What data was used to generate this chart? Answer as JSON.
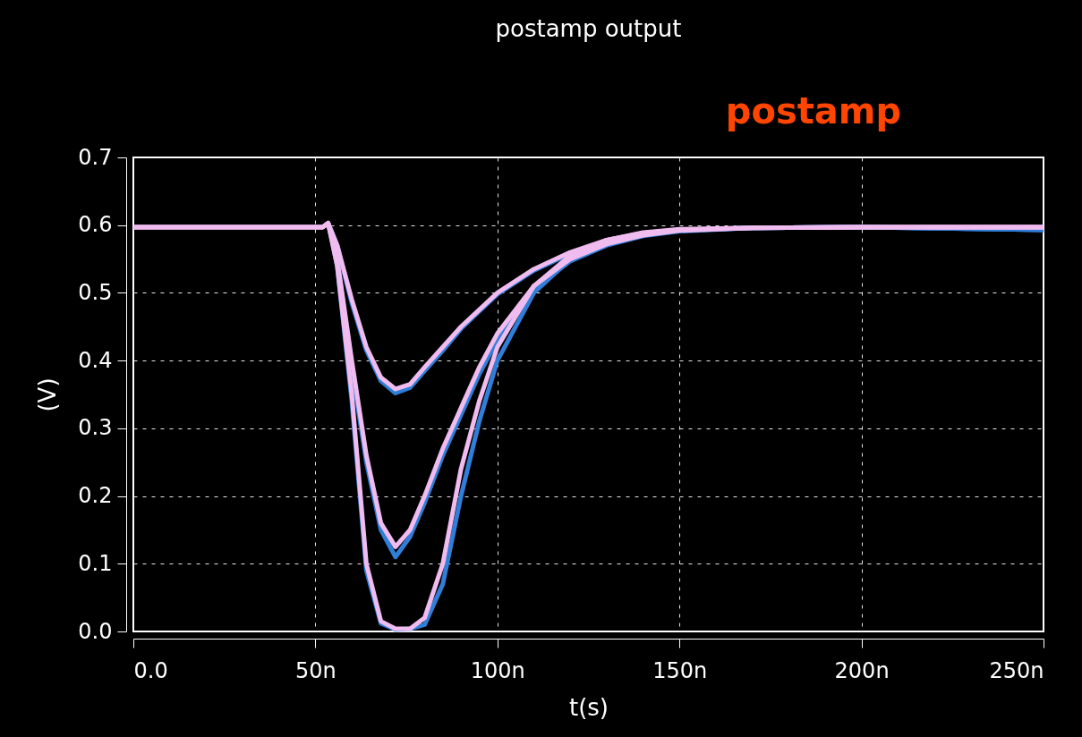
{
  "chart_data": {
    "type": "line",
    "title": "postamp output",
    "xlabel": "t(s)",
    "ylabel": "(V)",
    "annotations": [
      "postamp"
    ],
    "x": [
      0,
      52,
      53.5,
      56,
      60,
      64,
      68,
      72,
      76,
      80,
      85,
      90,
      95,
      100,
      110,
      120,
      130,
      140,
      150,
      170,
      200,
      250
    ],
    "series": [
      {
        "color": "#2f7fd8",
        "values": [
          null,
          null,
          0.603,
          0.57,
          0.485,
          0.415,
          0.37,
          0.352,
          0.36,
          0.385,
          0.415,
          0.447,
          0.473,
          0.498,
          0.533,
          0.558,
          0.576,
          0.587,
          0.592,
          0.596,
          0.597,
          0.593
        ]
      },
      {
        "color": "#2f7fd8",
        "values": [
          null,
          null,
          0.603,
          0.55,
          0.39,
          0.25,
          0.15,
          0.11,
          0.14,
          0.19,
          0.26,
          0.32,
          0.38,
          0.43,
          0.505,
          0.547,
          0.57,
          0.584,
          0.591,
          0.596,
          0.597,
          0.593
        ]
      },
      {
        "color": "#2f7fd8",
        "values": [
          null,
          null,
          0.603,
          0.54,
          0.34,
          0.09,
          0.012,
          0.003,
          0.004,
          0.01,
          0.07,
          0.2,
          0.31,
          0.4,
          0.5,
          0.55,
          0.575,
          0.587,
          0.593,
          0.596,
          0.597,
          0.593
        ]
      },
      {
        "color": "#f0bcf0",
        "values": [
          0.597,
          0.597,
          0.603,
          0.57,
          0.49,
          0.42,
          0.375,
          0.358,
          0.365,
          0.39,
          0.42,
          0.45,
          0.475,
          0.5,
          0.535,
          0.56,
          0.578,
          0.588,
          0.593,
          0.596,
          0.597,
          0.597
        ]
      },
      {
        "color": "#f0bcf0",
        "values": [
          0.597,
          0.597,
          0.603,
          0.55,
          0.4,
          0.26,
          0.16,
          0.125,
          0.15,
          0.2,
          0.27,
          0.33,
          0.39,
          0.44,
          0.51,
          0.55,
          0.572,
          0.585,
          0.592,
          0.596,
          0.597,
          0.597
        ]
      },
      {
        "color": "#f0bcf0",
        "values": [
          0.597,
          0.597,
          0.603,
          0.54,
          0.35,
          0.1,
          0.015,
          0.004,
          0.004,
          0.02,
          0.1,
          0.24,
          0.34,
          0.42,
          0.51,
          0.555,
          0.578,
          0.589,
          0.594,
          0.596,
          0.597,
          0.597
        ]
      }
    ],
    "xlim": [
      0,
      250
    ],
    "xticks": [
      {
        "value": 0,
        "label": "0.0"
      },
      {
        "value": 50,
        "label": "50n"
      },
      {
        "value": 100,
        "label": "100n"
      },
      {
        "value": 150,
        "label": "150n"
      },
      {
        "value": 200,
        "label": "200n"
      },
      {
        "value": 250,
        "label": "250n"
      }
    ],
    "ylim": [
      0,
      0.7
    ],
    "yticks": [
      {
        "value": 0,
        "label": "0.0"
      },
      0.1,
      0.2,
      0.3,
      0.4,
      0.5,
      0.6,
      0.7
    ],
    "grid": true,
    "line_style": "solid",
    "marker": "none",
    "legend": false
  }
}
